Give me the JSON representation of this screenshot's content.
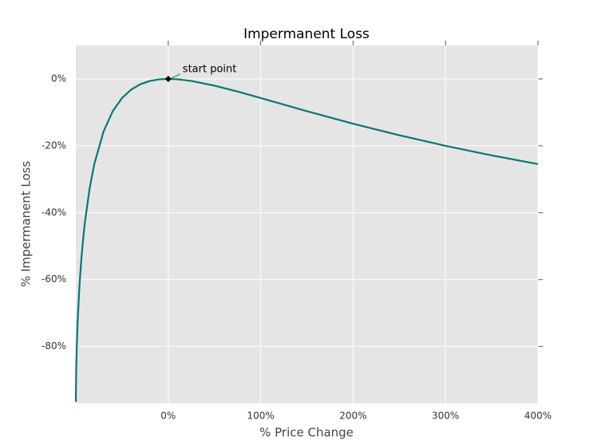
{
  "chart_data": {
    "type": "line",
    "title": "Impermanent Loss",
    "x_label": "% Price Change",
    "y_label": "% Impermanent Loss",
    "x": [
      -99.97,
      -99.9,
      -99.5,
      -99,
      -98,
      -96,
      -94,
      -92,
      -90,
      -85,
      -80,
      -70,
      -60,
      -50,
      -40,
      -30,
      -20,
      -10,
      0,
      10,
      25,
      50,
      75,
      100,
      150,
      200,
      250,
      300,
      350,
      400
    ],
    "series": [
      {
        "color": "#0b7575",
        "values": [
          -96.54,
          -93.68,
          -85.93,
          -80.2,
          -72.27,
          -61.54,
          -53.78,
          -47.62,
          -42.5,
          -32.64,
          -25.46,
          -15.73,
          -9.65,
          -5.72,
          -3.18,
          -1.57,
          -0.62,
          -0.14,
          0,
          -0.11,
          -0.62,
          -2.02,
          -3.79,
          -5.72,
          -9.65,
          -13.4,
          -16.85,
          -20,
          -22.86,
          -25.46
        ]
      }
    ],
    "xlim": [
      -100,
      400
    ],
    "ylim": [
      -97,
      10
    ],
    "xticks": [
      {
        "value": 0,
        "label": "0%"
      },
      {
        "value": 100,
        "label": "100%"
      },
      {
        "value": 200,
        "label": "200%"
      },
      {
        "value": 300,
        "label": "300%"
      },
      {
        "value": 400,
        "label": "400%"
      }
    ],
    "yticks": [
      {
        "value": -80,
        "label": "-80%"
      },
      {
        "value": -60,
        "label": "-60%"
      },
      {
        "value": -40,
        "label": "-40%"
      },
      {
        "value": -20,
        "label": "-20%"
      },
      {
        "value": 0,
        "label": "0%"
      }
    ],
    "grid": true,
    "annotation": {
      "text": "start point",
      "x": 0,
      "y": 0
    }
  }
}
